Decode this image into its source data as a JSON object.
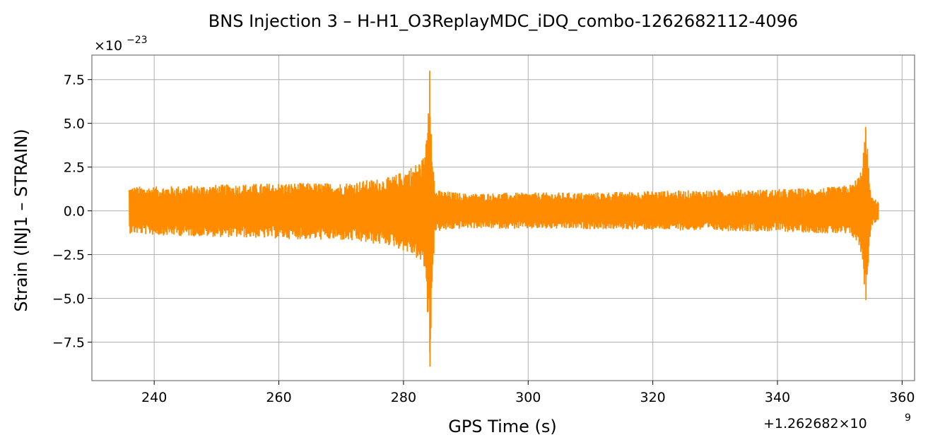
{
  "chart_data": {
    "type": "line",
    "title": "BNS Injection 3 – H-H1_O3ReplayMDC_iDQ_combo-1262682112-4096",
    "xlabel": "GPS Time (s)",
    "ylabel": "Strain (INJ1 – STRAIN)",
    "xlim": [
      230,
      362
    ],
    "ylim": [
      -9.7,
      8.9
    ],
    "x_ticks": [
      240,
      260,
      280,
      300,
      320,
      340,
      360
    ],
    "x_tick_labels": [
      "240",
      "260",
      "280",
      "300",
      "320",
      "340",
      "360"
    ],
    "y_ticks": [
      -7.5,
      -5.0,
      -2.5,
      0.0,
      2.5,
      5.0,
      7.5
    ],
    "y_tick_labels": [
      "−7.5",
      "−5.0",
      "−2.5",
      "0.0",
      "2.5",
      "5.0",
      "7.5"
    ],
    "y_multiplier_base": "×10",
    "y_multiplier_exp": "−23",
    "x_offset_text": "+1.262682×10",
    "x_offset_exp": "9",
    "grid": true,
    "series": [
      {
        "color": "#ff8c00",
        "data_range": [
          236.0,
          356.2
        ],
        "envelope": {
          "x": [
            236.2,
            240,
            250,
            260,
            270,
            275,
            278,
            280,
            282,
            283.5,
            284.2,
            285,
            290,
            300,
            310,
            320,
            330,
            340,
            345,
            350,
            352,
            353.3,
            354.2,
            355,
            356
          ],
          "upper": [
            1.4,
            1.4,
            1.5,
            1.6,
            1.6,
            1.8,
            1.95,
            2.3,
            2.7,
            3.2,
            8.0,
            1.2,
            1.0,
            1.05,
            1.05,
            1.15,
            1.2,
            1.25,
            1.3,
            1.4,
            1.55,
            2.2,
            4.8,
            0.8,
            0.6
          ],
          "lower": [
            -1.3,
            -1.4,
            -1.5,
            -1.6,
            -1.7,
            -1.9,
            -2.0,
            -2.3,
            -2.7,
            -3.5,
            -8.9,
            -1.2,
            -1.0,
            -1.05,
            -1.05,
            -1.1,
            -1.15,
            -1.2,
            -1.25,
            -1.35,
            -1.5,
            -2.2,
            -5.1,
            -0.9,
            -0.6
          ]
        }
      }
    ]
  }
}
